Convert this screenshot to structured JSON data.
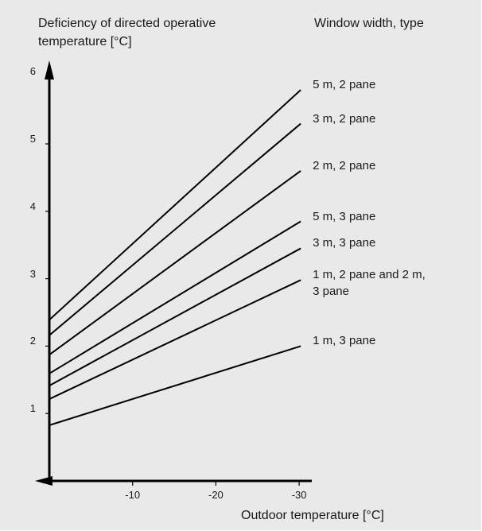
{
  "chart_data": {
    "type": "line",
    "ylabel_lines": [
      "Deficiency of directed operative",
      "temperature [°C]"
    ],
    "xlabel": "Outdoor temperature [°C]",
    "legend_title": "Window width, type",
    "x_ticks": [
      -10,
      -20,
      -30
    ],
    "y_ticks": [
      1,
      2,
      3,
      4,
      5,
      6
    ],
    "xlim": [
      0,
      -31
    ],
    "ylim": [
      0,
      6
    ],
    "grid": false,
    "series": [
      {
        "name": "5 m, 2 pane",
        "x": [
          0,
          -30
        ],
        "y": [
          2.4,
          5.8
        ]
      },
      {
        "name": "3 m, 2 pane",
        "x": [
          0,
          -30
        ],
        "y": [
          2.17,
          5.3
        ]
      },
      {
        "name": "2 m, 2 pane",
        "x": [
          0,
          -30
        ],
        "y": [
          1.88,
          4.6
        ]
      },
      {
        "name": "5 m, 3 pane",
        "x": [
          0,
          -30
        ],
        "y": [
          1.6,
          3.85
        ]
      },
      {
        "name": "3 m, 3 pane",
        "x": [
          0,
          -30
        ],
        "y": [
          1.42,
          3.45
        ]
      },
      {
        "name": "1 m, 2 pane and 2 m, 3 pane",
        "label_lines": [
          "1 m, 2 pane and 2 m,",
          "3 pane"
        ],
        "x": [
          0,
          -30
        ],
        "y": [
          1.22,
          2.98
        ]
      },
      {
        "name": "1 m, 3 pane",
        "x": [
          0,
          -30
        ],
        "y": [
          0.83,
          2.0
        ]
      }
    ]
  }
}
